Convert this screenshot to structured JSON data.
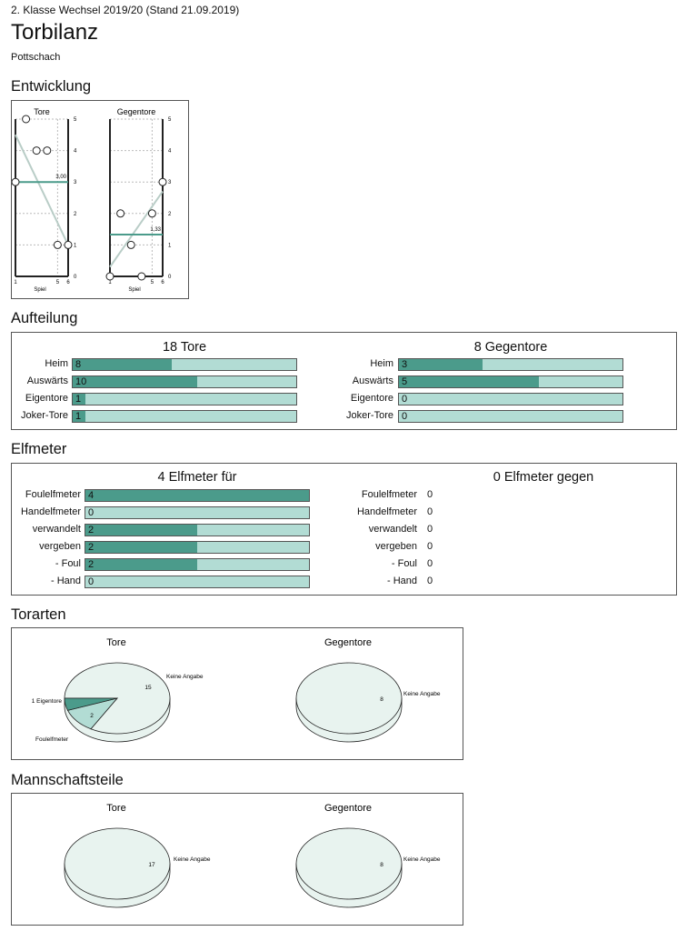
{
  "header": {
    "league": "2. Klasse Wechsel 2019/20 (Stand 21.09.2019)",
    "title": "Torbilanz",
    "club": "Pottschach"
  },
  "sections": {
    "entwicklung": "Entwicklung",
    "aufteilung": "Aufteilung",
    "elfmeter": "Elfmeter",
    "torarten": "Torarten",
    "mannschaftsteile": "Mannschaftsteile"
  },
  "chart_data": [
    {
      "type": "line",
      "title": "Tore",
      "xlabel": "Spiel",
      "x": [
        1,
        2,
        3,
        4,
        5,
        6
      ],
      "xticks": [
        "1",
        "5",
        "6"
      ],
      "yticks": [
        "0",
        "1",
        "2",
        "3",
        "4",
        "5"
      ],
      "ylim": [
        0,
        5
      ],
      "values": [
        3,
        5,
        4,
        4,
        1,
        1
      ],
      "average": 3.0,
      "average_label": "3,00",
      "trend": [
        4.5,
        1.0
      ]
    },
    {
      "type": "line",
      "title": "Gegentore",
      "xlabel": "Spiel",
      "x": [
        1,
        2,
        3,
        4,
        5,
        6
      ],
      "xticks": [
        "1",
        "5",
        "6"
      ],
      "yticks": [
        "0",
        "1",
        "2",
        "3",
        "4",
        "5"
      ],
      "ylim": [
        0,
        5
      ],
      "values": [
        0,
        2,
        1,
        0,
        2,
        3
      ],
      "average": 1.33,
      "average_label": "1,33",
      "trend": [
        0.3,
        2.7
      ]
    },
    {
      "type": "bar",
      "title": "18 Tore",
      "max": 18,
      "categories": [
        "Heim",
        "Auswärts",
        "Eigentore",
        "Joker-Tore"
      ],
      "values": [
        8,
        10,
        1,
        1
      ]
    },
    {
      "type": "bar",
      "title": "8 Gegentore",
      "max": 8,
      "categories": [
        "Heim",
        "Auswärts",
        "Eigentore",
        "Joker-Tore"
      ],
      "values": [
        3,
        5,
        0,
        0
      ]
    },
    {
      "type": "bar",
      "title": "4 Elfmeter für",
      "max": 4,
      "categories": [
        "Foulelfmeter",
        "Handelfmeter",
        "verwandelt",
        "vergeben",
        "- Foul",
        "- Hand"
      ],
      "values": [
        4,
        0,
        2,
        2,
        2,
        0
      ]
    },
    {
      "type": "table",
      "title": "0 Elfmeter gegen",
      "categories": [
        "Foulelfmeter",
        "Handelfmeter",
        "verwandelt",
        "vergeben",
        "- Foul",
        "- Hand"
      ],
      "values": [
        0,
        0,
        0,
        0,
        0,
        0
      ]
    },
    {
      "type": "pie",
      "title": "Tore",
      "slices": [
        {
          "label": "Keine Angabe",
          "value": 15,
          "value_label": "15"
        },
        {
          "label": "Foulelfmeter",
          "value": 2,
          "value_label": "2"
        },
        {
          "label": "1 Eigentore",
          "value": 1,
          "value_label": ""
        }
      ]
    },
    {
      "type": "pie",
      "title": "Gegentore",
      "slices": [
        {
          "label": "Keine Angabe",
          "value": 8,
          "value_label": "8"
        }
      ]
    },
    {
      "type": "pie",
      "title": "Tore",
      "slices": [
        {
          "label": "Keine Angabe",
          "value": 17,
          "value_label": "17"
        }
      ]
    },
    {
      "type": "pie",
      "title": "Gegentore",
      "slices": [
        {
          "label": "Keine Angabe",
          "value": 8,
          "value_label": "8"
        }
      ]
    }
  ],
  "colors": {
    "dark": "#4b9b8b",
    "light": "#b2dcd4",
    "pie_face": "#e8f3ef",
    "trend": "#b9cdc7"
  }
}
